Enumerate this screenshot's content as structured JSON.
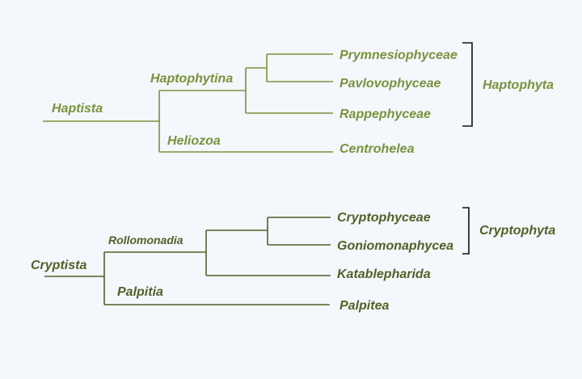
{
  "haptista_tree": {
    "root_label": "Haptista",
    "clades": {
      "haptophytina": "Haptophytina",
      "heliozoa": "Heliozoa"
    },
    "leaves": {
      "prymnesiophyceae": "Prymnesiophyceae",
      "pavlovophyceae": "Pavlovophyceae",
      "rappephyceae": "Rappephyceae",
      "centrohelea": "Centrohelea"
    },
    "group_label": "Haptophyta",
    "color": "#77933c"
  },
  "cryptista_tree": {
    "root_label": "Cryptista",
    "clades": {
      "rollomonadia": "Rollomonadia",
      "palpitia": "Palpitia"
    },
    "leaves": {
      "cryptophyceae": "Cryptophyceae",
      "goniomonaphycea": "Goniomonaphycea",
      "katablepharida": "Katablepharida",
      "palpitea": "Palpitea"
    },
    "group_label": "Cryptophyta",
    "color": "#4f6228"
  }
}
